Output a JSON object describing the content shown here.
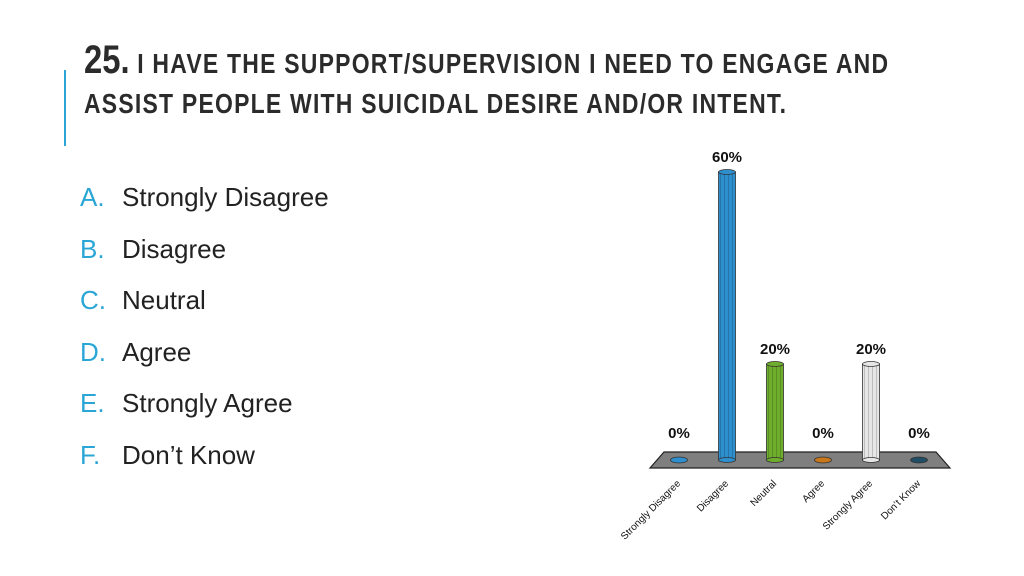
{
  "slide": {
    "title_number": "25.",
    "title_line1": "I HAVE THE SUPPORT/SUPERVISION I NEED TO ENGAGE AND",
    "title_line2": "ASSIST PEOPLE WITH SUICIDAL DESIRE AND/OR INTENT.",
    "accent_color": "#29a6d6",
    "options": [
      {
        "letter": "A.",
        "label": "Strongly Disagree"
      },
      {
        "letter": "B.",
        "label": "Disagree"
      },
      {
        "letter": "C.",
        "label": "Neutral"
      },
      {
        "letter": "D.",
        "label": "Agree"
      },
      {
        "letter": "E.",
        "label": "Strongly Agree"
      },
      {
        "letter": "F.",
        "label": "Don’t Know"
      }
    ]
  },
  "chart_data": {
    "type": "bar",
    "categories": [
      "Strongly Disagree",
      "Disagree",
      "Neutral",
      "Agree",
      "Strongly Agree",
      "Don’t Know"
    ],
    "values": [
      0,
      60,
      20,
      0,
      20,
      0
    ],
    "data_labels": [
      "0%",
      "60%",
      "20%",
      "0%",
      "20%",
      "0%"
    ],
    "colors": [
      "#2e8fcf",
      "#2e8fcf",
      "#6fae2c",
      "#c8781a",
      "#e6e6e6",
      "#1f4d66"
    ],
    "ylim": [
      0,
      60
    ],
    "grid": false,
    "legend": "none",
    "title": "",
    "xlabel": "",
    "ylabel": ""
  }
}
